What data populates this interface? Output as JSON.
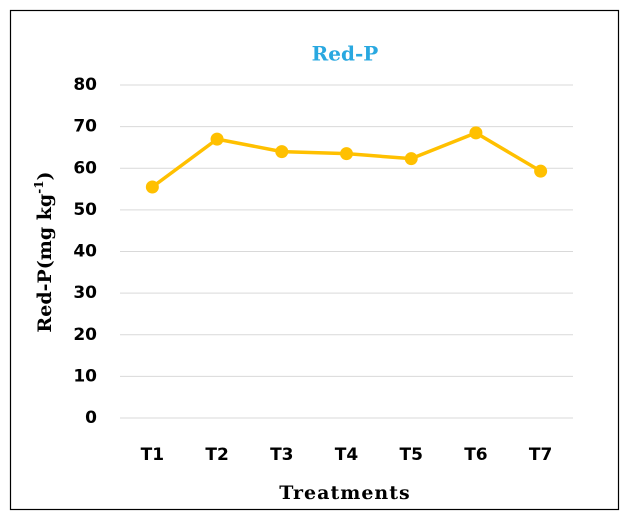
{
  "chart_data": {
    "type": "line",
    "title": "Red-P",
    "y_label": {
      "text": "Red-P(mg kg",
      "superscript": "-1",
      "suffix": ")"
    },
    "x_label": "Treatments",
    "categories": [
      "T1",
      "T2",
      "T3",
      "T4",
      "T5",
      "T6",
      "T7"
    ],
    "series": [
      {
        "name": "Red-P",
        "color": "#ffc000",
        "values": [
          55.5,
          67,
          64,
          63.5,
          62.3,
          68.5,
          59.3
        ]
      }
    ],
    "ylim": [
      0,
      80
    ],
    "yticks": [
      0,
      10,
      20,
      30,
      40,
      50,
      60,
      70,
      80
    ],
    "grid": true,
    "title_color": "#29a8e0"
  }
}
